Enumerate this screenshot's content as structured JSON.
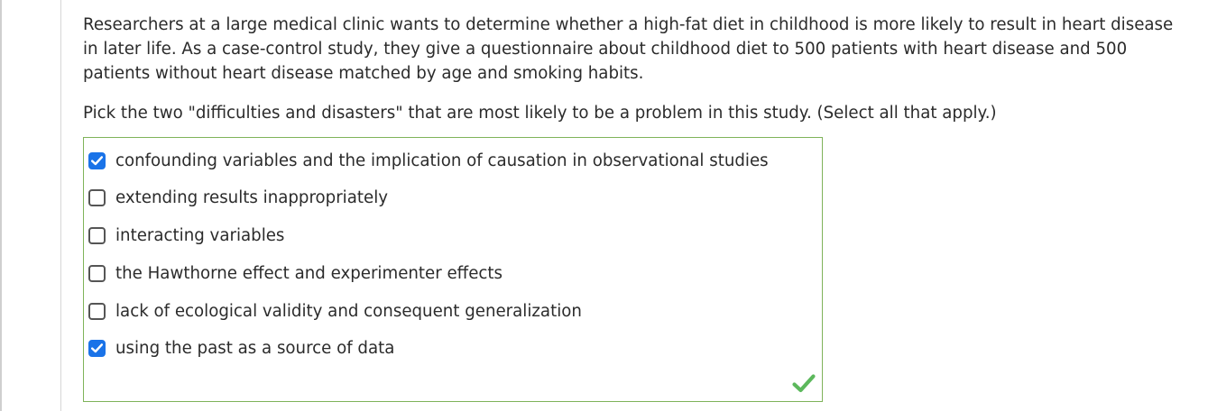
{
  "question": {
    "text": "Researchers at a large medical clinic wants to determine whether a high-fat diet in childhood is more likely to result in heart disease in later life. As a case-control study, they give a questionnaire about childhood diet to 500 patients with heart disease and 500 patients without heart disease matched by age and smoking habits.",
    "instruction": "Pick the two \"difficulties and disasters\" that are most likely to be a problem in this study. (Select all that apply.)"
  },
  "options": [
    {
      "label": "confounding variables and the implication of causation in observational studies",
      "checked": true
    },
    {
      "label": "extending results inappropriately",
      "checked": false
    },
    {
      "label": "interacting variables",
      "checked": false
    },
    {
      "label": "the Hawthorne effect and experimenter effects",
      "checked": false
    },
    {
      "label": "lack of ecological validity and consequent generalization",
      "checked": false
    },
    {
      "label": "using the past as a source of data",
      "checked": true
    }
  ],
  "status": {
    "icon": "green-checkmark-icon",
    "color": "#5cb85c"
  },
  "colors": {
    "checkbox_checked": "#1a73e8",
    "answer_border": "#7fb35a"
  }
}
